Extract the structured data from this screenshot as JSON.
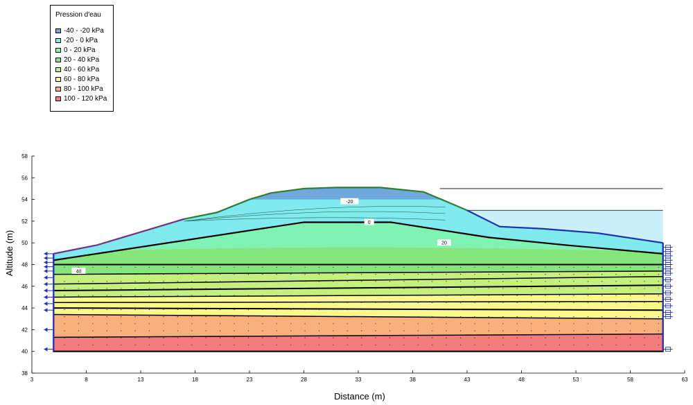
{
  "chart_data": {
    "type": "area",
    "title": "",
    "xlabel": "Distance (m)",
    "ylabel": "Altitude (m)",
    "xlim": [
      3,
      63
    ],
    "ylim": [
      38,
      58
    ],
    "xticks": [
      3,
      8,
      13,
      18,
      23,
      28,
      33,
      38,
      43,
      48,
      53,
      58,
      63
    ],
    "yticks": [
      38,
      40,
      42,
      44,
      46,
      48,
      50,
      52,
      54,
      56,
      58
    ],
    "legend": {
      "title": "Pression d'eau",
      "position": "top-left",
      "entries": [
        {
          "label": "-40 - -20 kPa",
          "color": "#6fa8dc"
        },
        {
          "label": "-20 - 0 kPa",
          "color": "#7fe9ee"
        },
        {
          "label": "0 - 20 kPa",
          "color": "#7ff2b4"
        },
        {
          "label": "20 - 40 kPa",
          "color": "#86e57d"
        },
        {
          "label": "40 - 60 kPa",
          "color": "#c6f07d"
        },
        {
          "label": "60 - 80 kPa",
          "color": "#faf88a"
        },
        {
          "label": "80 - 100 kPa",
          "color": "#f9b07a"
        },
        {
          "label": "100 - 120 kPa",
          "color": "#f57c7c"
        }
      ]
    },
    "ground_surface": {
      "x": [
        5,
        7,
        9,
        11,
        13,
        15,
        17,
        20,
        23,
        25,
        28,
        31,
        35,
        39,
        43,
        46,
        50,
        55,
        61
      ],
      "y": [
        49.0,
        49.4,
        49.8,
        50.4,
        51.0,
        51.6,
        52.2,
        52.8,
        54.0,
        54.6,
        55.0,
        55.1,
        55.1,
        54.7,
        53.0,
        51.5,
        51.3,
        50.9,
        50.0
      ]
    },
    "water_table_0kPa": {
      "x": [
        5,
        28,
        36,
        45,
        52,
        61
      ],
      "y": [
        48.4,
        51.9,
        51.9,
        50.5,
        49.8,
        49.0
      ]
    },
    "ponded_water_level": 53.0,
    "upper_reference_line": 55.0,
    "contour_labels": [
      {
        "text": "-20",
        "x": 32.2,
        "y": 53.8
      },
      {
        "text": "0",
        "x": 34.0,
        "y": 51.9
      },
      {
        "text": "20",
        "x": 40.9,
        "y": 50.0
      },
      {
        "text": "40",
        "x": 7.3,
        "y": 47.4
      }
    ],
    "bands": [
      {
        "range": "-40 - -20 kPa",
        "color": "#6fa8dc",
        "top": [
          [
            23,
            54.0
          ],
          [
            25,
            54.6
          ],
          [
            28,
            55.0
          ],
          [
            31,
            55.1
          ],
          [
            35,
            55.1
          ],
          [
            39,
            54.7
          ],
          [
            40.5,
            54.0
          ]
        ],
        "bottom": [
          [
            23,
            54.0
          ],
          [
            40.5,
            54.0
          ]
        ]
      },
      {
        "range": "-20 - 0 kPa",
        "color": "#7fe9ee"
      },
      {
        "range": "0 - 20 kPa",
        "color": "#7ff2b4"
      },
      {
        "range": "20 - 40 kPa",
        "color": "#86e57d"
      },
      {
        "range": "40 - 60 kPa",
        "color": "#c6f07d"
      },
      {
        "range": "60 - 80 kPa",
        "color": "#faf88a"
      },
      {
        "range": "80 - 100 kPa",
        "color": "#f9b07a"
      },
      {
        "range": "100 - 120 kPa",
        "color": "#f57c7c"
      }
    ],
    "layer_lines": [
      {
        "x": [
          5,
          61
        ],
        "y": [
          48.0,
          48.0
        ]
      },
      {
        "x": [
          5,
          61
        ],
        "y": [
          47.1,
          47.4
        ]
      },
      {
        "x": [
          5,
          61
        ],
        "y": [
          46.2,
          46.9
        ]
      },
      {
        "x": [
          5,
          61
        ],
        "y": [
          45.6,
          46.1
        ]
      },
      {
        "x": [
          5,
          61
        ],
        "y": [
          45.0,
          45.3
        ]
      },
      {
        "x": [
          5,
          61
        ],
        "y": [
          44.5,
          44.6
        ]
      },
      {
        "x": [
          5,
          61
        ],
        "y": [
          44.0,
          43.8
        ]
      },
      {
        "x": [
          5,
          61
        ],
        "y": [
          43.4,
          43.0
        ]
      },
      {
        "x": [
          5,
          61
        ],
        "y": [
          41.3,
          41.6
        ]
      }
    ],
    "domain_bottom": 40.0,
    "domain_left": 5,
    "domain_right": 61
  }
}
